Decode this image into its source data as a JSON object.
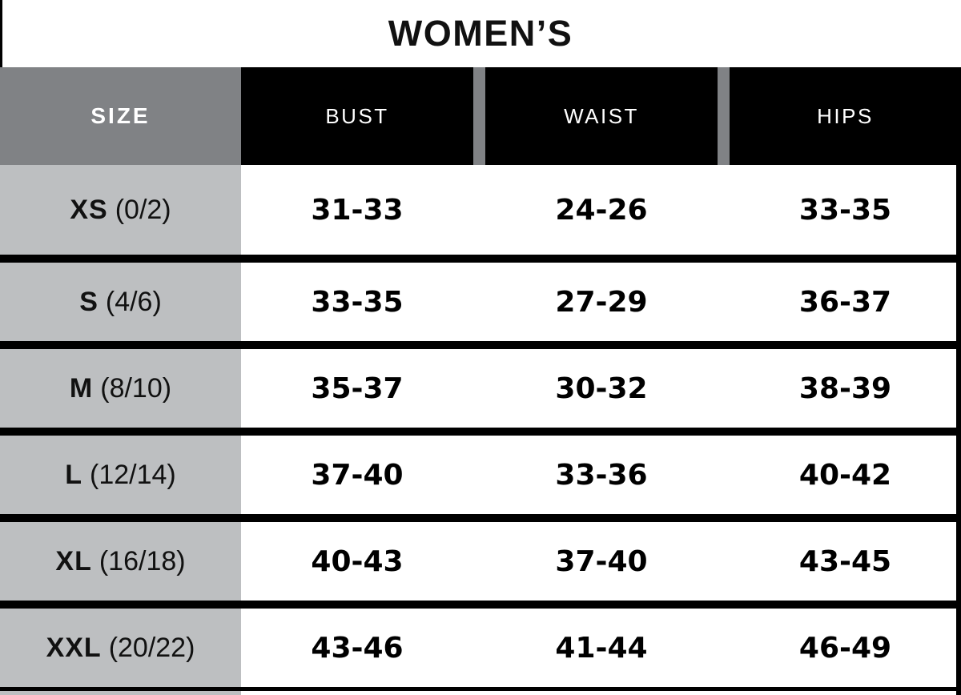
{
  "title": "WOMEN’S",
  "header": {
    "size": "SIZE",
    "bust": "BUST",
    "waist": "WAIST",
    "hips": "HIPS"
  },
  "rows": [
    {
      "size": "XS",
      "detail": "(0/2)",
      "bust": "31-33",
      "waist": "24-26",
      "hips": "33-35"
    },
    {
      "size": "S",
      "detail": "(4/6)",
      "bust": "33-35",
      "waist": "27-29",
      "hips": "36-37"
    },
    {
      "size": "M",
      "detail": "(8/10)",
      "bust": "35-37",
      "waist": "30-32",
      "hips": "38-39"
    },
    {
      "size": "L",
      "detail": "(12/14)",
      "bust": "37-40",
      "waist": "33-36",
      "hips": "40-42"
    },
    {
      "size": "XL",
      "detail": "(16/18)",
      "bust": "40-43",
      "waist": "37-40",
      "hips": "43-45"
    },
    {
      "size": "XXL",
      "detail": "(20/22)",
      "bust": "43-46",
      "waist": "41-44",
      "hips": "46-49"
    }
  ],
  "colors": {
    "header_gray": "#808285",
    "row_gray": "#bdbfc1",
    "cell_black": "#000000",
    "text_white": "#ffffff",
    "text_black": "#111111"
  },
  "chart_data": {
    "type": "table",
    "title": "WOMEN’S",
    "columns": [
      "SIZE",
      "BUST",
      "WAIST",
      "HIPS"
    ],
    "rows": [
      [
        "XS (0/2)",
        "31-33",
        "24-26",
        "33-35"
      ],
      [
        "S (4/6)",
        "33-35",
        "27-29",
        "36-37"
      ],
      [
        "M (8/10)",
        "35-37",
        "30-32",
        "38-39"
      ],
      [
        "L (12/14)",
        "37-40",
        "33-36",
        "40-42"
      ],
      [
        "XL (16/18)",
        "40-43",
        "37-40",
        "43-45"
      ],
      [
        "XXL (20/22)",
        "43-46",
        "41-44",
        "46-49"
      ]
    ],
    "legend_position": "none",
    "grid": "thick black horizontal row dividers"
  }
}
